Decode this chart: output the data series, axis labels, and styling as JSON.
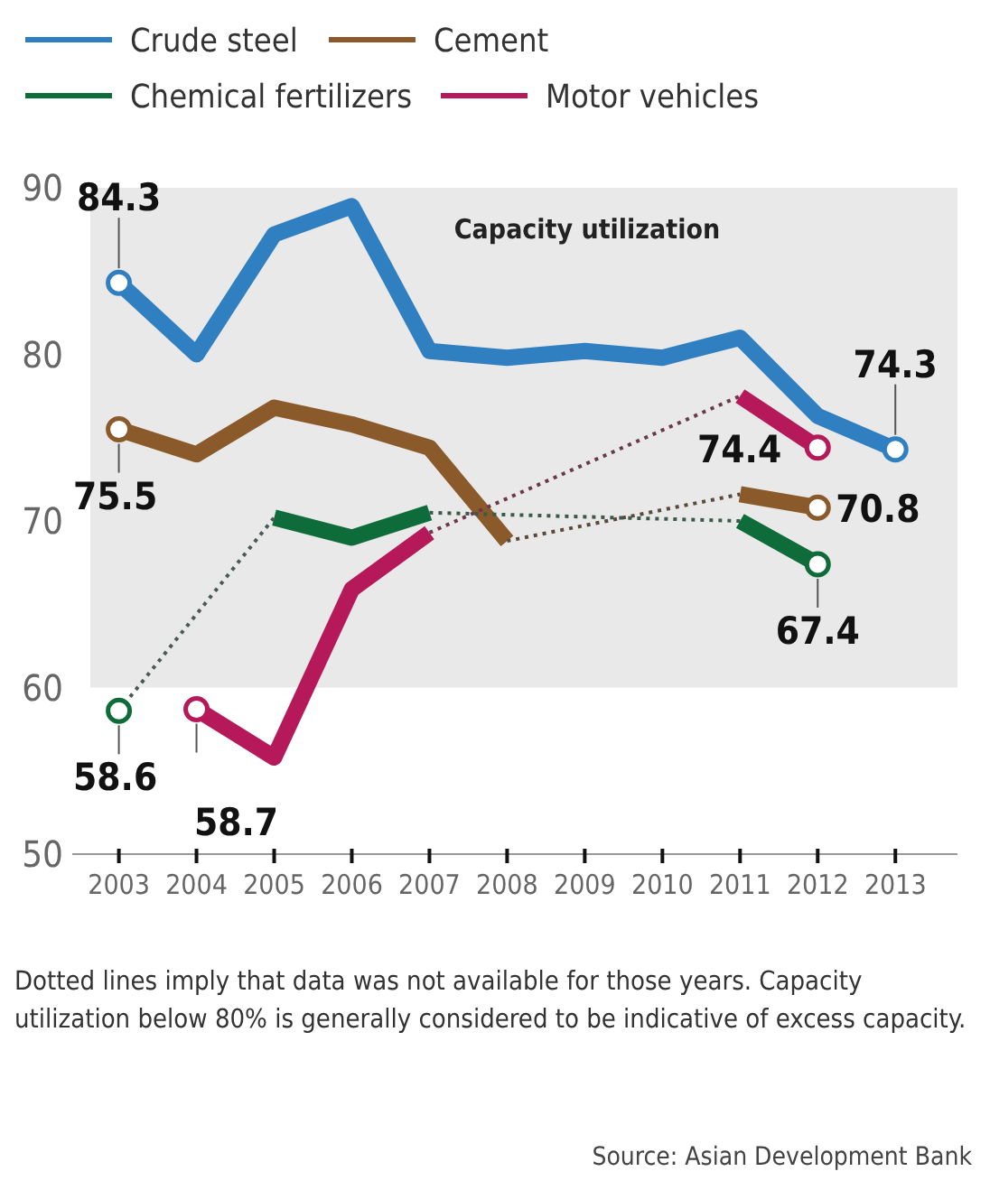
{
  "chart_data": {
    "type": "line",
    "x": [
      2003,
      2004,
      2005,
      2006,
      2007,
      2008,
      2009,
      2010,
      2011,
      2012,
      2013
    ],
    "xlim": [
      2002.4,
      2013.8
    ],
    "xticks": [
      2003,
      2004,
      2005,
      2006,
      2007,
      2008,
      2009,
      2010,
      2011,
      2012,
      2013
    ],
    "ylim": [
      50,
      90
    ],
    "yticks": [
      50,
      60,
      70,
      80,
      90
    ],
    "series": [
      {
        "name": "Crude steel",
        "color": "#2f7fc1",
        "values": [
          84.3,
          80.0,
          87.2,
          88.9,
          80.2,
          79.8,
          80.2,
          79.8,
          81.0,
          76.3,
          74.3
        ],
        "value_labels": [
          "84.3",
          null,
          null,
          null,
          null,
          null,
          null,
          null,
          null,
          null,
          "74.3"
        ]
      },
      {
        "name": "Cement",
        "color": "#8a5a2b",
        "values": [
          75.5,
          74.0,
          76.8,
          75.8,
          74.4,
          68.8,
          null,
          null,
          71.6,
          70.8,
          null
        ],
        "value_labels": [
          "75.5",
          null,
          null,
          null,
          null,
          null,
          null,
          null,
          null,
          "70.8",
          null
        ]
      },
      {
        "name": "Chemical fertilizers",
        "color": "#0e6b3a",
        "values": [
          58.6,
          null,
          70.2,
          69.0,
          70.5,
          null,
          null,
          null,
          70.0,
          67.4,
          null
        ],
        "value_labels": [
          "58.6",
          null,
          null,
          null,
          null,
          null,
          null,
          null,
          null,
          "67.4",
          null
        ]
      },
      {
        "name": "Motor vehicles",
        "color": "#b5195a",
        "values": [
          null,
          58.7,
          55.8,
          65.9,
          69.3,
          null,
          null,
          null,
          77.5,
          74.4,
          null
        ],
        "value_labels": [
          null,
          "58.7",
          null,
          null,
          null,
          null,
          null,
          null,
          null,
          "74.4",
          null
        ]
      },
      {
        "color": "#4a5a50",
        "x": [
          2003,
          2005
        ],
        "values": [
          58.6,
          70.2
        ],
        "line_style": "dotted"
      },
      {
        "color": "#3c5a48",
        "x": [
          2007,
          2011
        ],
        "values": [
          70.5,
          70.0
        ],
        "line_style": "dotted"
      },
      {
        "color": "#5a4a3a",
        "x": [
          2008,
          2011
        ],
        "values": [
          68.8,
          71.6
        ],
        "line_style": "dotted"
      },
      {
        "color": "#6a3a4a",
        "x": [
          2007,
          2011
        ],
        "values": [
          69.3,
          77.5
        ],
        "line_style": "dotted"
      }
    ],
    "bands": [
      {
        "axis": "y",
        "from": 60,
        "to": 90,
        "label": "Capacity utilization",
        "color": "#e9e9e9"
      }
    ],
    "legend": "top left",
    "annotations": [
      "Dotted lines imply that data was not available for those years. Capacity utilization below 80% is generally considered to be indicative of excess capacity.",
      "Source: Asian Development Bank"
    ]
  }
}
